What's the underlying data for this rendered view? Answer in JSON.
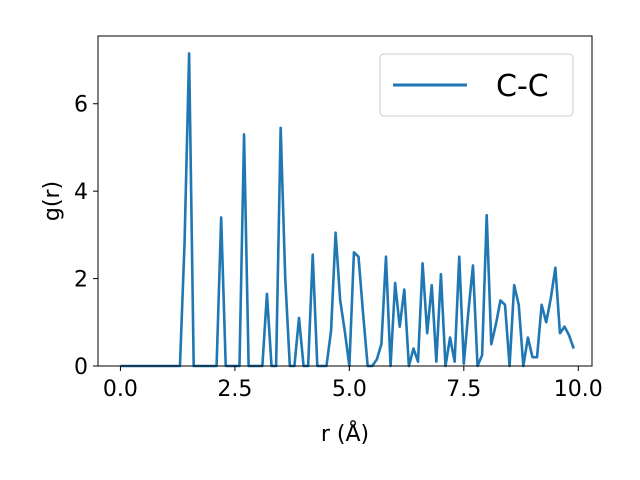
{
  "chart_data": {
    "type": "line",
    "xlabel": "r (Å)",
    "ylabel": "g(r)",
    "xlim": [
      -0.49,
      10.3
    ],
    "ylim": [
      0,
      7.55
    ],
    "xticks": [
      0.0,
      2.5,
      5.0,
      7.5,
      10.0
    ],
    "xtick_labels": [
      "0.0",
      "2.5",
      "5.0",
      "7.5",
      "10.0"
    ],
    "yticks": [
      0,
      2,
      4,
      6
    ],
    "ytick_labels": [
      "0",
      "2",
      "4",
      "6"
    ],
    "grid": false,
    "legend_position": "top-right",
    "series": [
      {
        "name": "C-C",
        "color": "#1f77b4",
        "x": [
          0.0,
          0.1,
          0.2,
          0.3,
          0.4,
          0.5,
          0.6,
          0.7,
          0.8,
          0.9,
          1.0,
          1.1,
          1.2,
          1.3,
          1.4,
          1.5,
          1.6,
          1.7,
          1.8,
          1.9,
          2.0,
          2.1,
          2.2,
          2.3,
          2.4,
          2.5,
          2.6,
          2.7,
          2.8,
          2.9,
          3.0,
          3.1,
          3.2,
          3.3,
          3.4,
          3.5,
          3.6,
          3.7,
          3.8,
          3.9,
          4.0,
          4.1,
          4.2,
          4.3,
          4.4,
          4.5,
          4.6,
          4.7,
          4.8,
          4.9,
          5.0,
          5.1,
          5.2,
          5.3,
          5.4,
          5.5,
          5.6,
          5.7,
          5.8,
          5.9,
          6.0,
          6.1,
          6.2,
          6.3,
          6.4,
          6.5,
          6.6,
          6.7,
          6.8,
          6.9,
          7.0,
          7.1,
          7.2,
          7.3,
          7.4,
          7.5,
          7.6,
          7.7,
          7.8,
          7.9,
          8.0,
          8.1,
          8.2,
          8.3,
          8.4,
          8.5,
          8.6,
          8.7,
          8.8,
          8.9,
          9.0,
          9.1,
          9.2,
          9.3,
          9.4,
          9.5,
          9.6,
          9.7,
          9.8,
          9.9
        ],
        "values": [
          0,
          0,
          0,
          0,
          0,
          0,
          0,
          0,
          0,
          0,
          0,
          0,
          0,
          0,
          2.8,
          7.15,
          0,
          0,
          0,
          0,
          0,
          0,
          3.4,
          0,
          0,
          0,
          0,
          5.3,
          0,
          0,
          0,
          0,
          1.65,
          0,
          0,
          5.45,
          2.0,
          0,
          0,
          1.1,
          0,
          0,
          2.55,
          0,
          0,
          0,
          0.8,
          3.05,
          1.5,
          0.8,
          0,
          2.6,
          2.5,
          1.2,
          0,
          0,
          0.15,
          0.5,
          2.5,
          0,
          1.9,
          0.9,
          1.75,
          0,
          0.4,
          0.1,
          2.35,
          0.75,
          1.85,
          0.1,
          2.1,
          0,
          0.65,
          0.1,
          2.5,
          0.05,
          1.25,
          2.3,
          0,
          0.25,
          3.45,
          0.5,
          0.95,
          1.5,
          1.4,
          0,
          1.85,
          1.4,
          0,
          0.65,
          0.2,
          0.2,
          1.4,
          1.0,
          1.55,
          2.25,
          0.75,
          0.9,
          0.7,
          0.4
        ]
      }
    ]
  }
}
